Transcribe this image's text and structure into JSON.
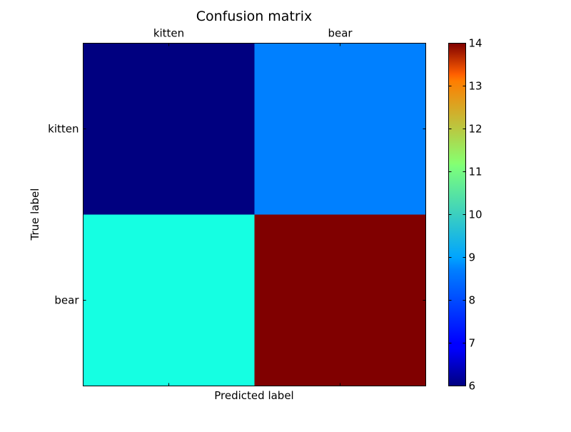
{
  "chart_data": {
    "type": "heatmap",
    "title": "Confusion matrix",
    "xlabel": "Predicted label",
    "ylabel": "True label",
    "x_categories": [
      "kitten",
      "bear"
    ],
    "y_categories": [
      "kitten",
      "bear"
    ],
    "values": [
      [
        6,
        8
      ],
      [
        9,
        14
      ]
    ],
    "colormap": "jet",
    "colorbar": {
      "vmin": 6,
      "vmax": 14,
      "ticks": [
        "6",
        "7",
        "8",
        "9",
        "10",
        "11",
        "12",
        "13",
        "14"
      ]
    },
    "x_ticks_position": "top",
    "xlabel_position": "bottom",
    "grid": false
  }
}
